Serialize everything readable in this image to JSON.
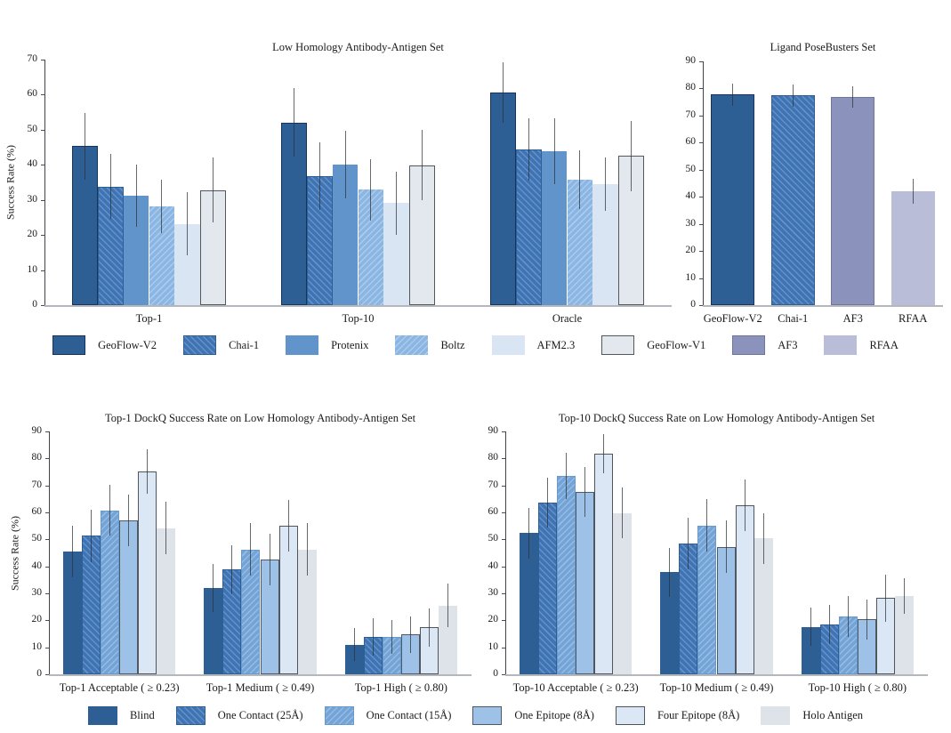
{
  "figure": {
    "background": "#ffffff",
    "error_bar_color": "rgba(45,48,52,0.72)"
  },
  "styles": {
    "geoflow_v2": {
      "fill": "#2d5e94",
      "border": "#17355a",
      "border_width": 1.5,
      "hatch": "none"
    },
    "chai_1": {
      "fill": "#3e74b3",
      "stripe": "#6591c8",
      "border": "#2d5e94",
      "border_width": 1,
      "hatch": "fwd"
    },
    "protenix": {
      "fill": "#6094cb",
      "border": "#6094cb",
      "border_width": 0,
      "hatch": "none"
    },
    "boltz": {
      "fill": "#8cb6e2",
      "stripe": "#aacbee",
      "border": "#84aedd",
      "border_width": 0,
      "hatch": "back"
    },
    "afm23": {
      "fill": "#d9e5f3",
      "border": "#d9e5f3",
      "border_width": 0,
      "hatch": "none"
    },
    "geoflow_v1": {
      "fill": "#e3e8ee",
      "border": "#54585d",
      "border_width": 1.5,
      "hatch": "none"
    },
    "af3": {
      "fill": "#8b92bb",
      "border": "#70769a",
      "border_width": 1,
      "hatch": "none"
    },
    "rfaa": {
      "fill": "#b9bdd7",
      "border": "#b9bdd7",
      "border_width": 0,
      "hatch": "none"
    },
    "blind": {
      "fill": "#2d5e94",
      "border": "#2d5e94",
      "border_width": 0,
      "hatch": "none"
    },
    "one_contact_25": {
      "fill": "#3e74b3",
      "stripe": "#6591c8",
      "border": "#2d5e94",
      "border_width": 1,
      "hatch": "fwd"
    },
    "one_contact_15": {
      "fill": "#74a3d6",
      "stripe": "#94bce5",
      "border": "#699ace",
      "border_width": 1,
      "hatch": "back"
    },
    "one_epitope_8": {
      "fill": "#9dc1e7",
      "border": "#4f5a68",
      "border_width": 1.2,
      "hatch": "none"
    },
    "four_epitope_8": {
      "fill": "#dbe7f5",
      "border": "#50555b",
      "border_width": 1.2,
      "hatch": "none"
    },
    "holo_antigen": {
      "fill": "#dee3ea",
      "border": "#dee3ea",
      "border_width": 0,
      "hatch": "none"
    }
  },
  "legend_top": {
    "items": [
      {
        "label": "GeoFlow-V2",
        "style": "geoflow_v2"
      },
      {
        "label": "Chai-1",
        "style": "chai_1"
      },
      {
        "label": "Protenix",
        "style": "protenix"
      },
      {
        "label": "Boltz",
        "style": "boltz"
      },
      {
        "label": "AFM2.3",
        "style": "afm23"
      },
      {
        "label": "GeoFlow-V1",
        "style": "geoflow_v1"
      },
      {
        "label": "AF3",
        "style": "af3"
      },
      {
        "label": "RFAA",
        "style": "rfaa"
      }
    ]
  },
  "legend_bottom": {
    "items": [
      {
        "label": "Blind",
        "style": "blind"
      },
      {
        "label": "One Contact (25Å)",
        "style": "one_contact_25"
      },
      {
        "label": "One Contact (15Å)",
        "style": "one_contact_15"
      },
      {
        "label": "One Epitope (8Å)",
        "style": "one_epitope_8"
      },
      {
        "label": "Four Epitope (8Å)",
        "style": "four_epitope_8"
      },
      {
        "label": "Holo Antigen",
        "style": "holo_antigen"
      }
    ]
  },
  "chart_data": [
    {
      "type": "bar",
      "title": "Low Homology Antibody-Antigen Set",
      "ylabel": "Success Rate (%)",
      "ylim": [
        0,
        70
      ],
      "ytick_step": 10,
      "grid": false,
      "legend_position": "shared-bottom",
      "categories": [
        "Top-1",
        "Top-10",
        "Oracle"
      ],
      "series": [
        {
          "name": "GeoFlow-V2",
          "style": "geoflow_v2",
          "values": [
            45.3,
            52.1,
            60.6
          ],
          "errors": [
            9.5,
            9.7,
            8.6
          ]
        },
        {
          "name": "Chai-1",
          "style": "chai_1",
          "values": [
            33.8,
            36.7,
            44.3
          ],
          "errors": [
            9.2,
            9.6,
            8.9
          ]
        },
        {
          "name": "Protenix",
          "style": "protenix",
          "values": [
            31.2,
            40.0,
            43.9
          ],
          "errors": [
            8.8,
            9.6,
            9.4
          ]
        },
        {
          "name": "Boltz",
          "style": "boltz",
          "values": [
            28.1,
            32.9,
            35.8
          ],
          "errors": [
            7.6,
            8.7,
            8.4
          ]
        },
        {
          "name": "AFM2.3",
          "style": "afm23",
          "values": [
            23.2,
            29.1,
            34.5
          ],
          "errors": [
            8.9,
            9.0,
            7.6
          ]
        },
        {
          "name": "GeoFlow-V1",
          "style": "geoflow_v1",
          "values": [
            32.8,
            39.9,
            42.5
          ],
          "errors": [
            9.2,
            10.0,
            10.0
          ]
        }
      ]
    },
    {
      "type": "bar",
      "title": "Ligand PoseBusters Set",
      "ylabel": "",
      "ylim": [
        0,
        90
      ],
      "ytick_step": 10,
      "grid": false,
      "legend_position": "shared-bottom",
      "bars": [
        {
          "label": "GeoFlow-V2",
          "style": "geoflow_v2",
          "value": 77.7,
          "error": 4.0
        },
        {
          "label": "Chai-1",
          "style": "chai_1",
          "value": 77.4,
          "error": 4.0
        },
        {
          "label": "AF3",
          "style": "af3",
          "value": 76.8,
          "error": 4.0
        },
        {
          "label": "RFAA",
          "style": "rfaa",
          "value": 42.2,
          "error": 4.6
        }
      ]
    },
    {
      "type": "bar",
      "title": "Top-1 DockQ Success Rate on Low Homology Antibody-Antigen Set",
      "ylabel": "Success Rate (%)",
      "ylim": [
        0,
        90
      ],
      "ytick_step": 10,
      "grid": false,
      "legend_position": "shared-bottom",
      "categories": [
        "Top-1 Acceptable ( ≥ 0.23)",
        "Top-1 Medium ( ≥ 0.49)",
        "Top-1 High ( ≥ 0.80)"
      ],
      "series": [
        {
          "name": "Blind",
          "style": "blind",
          "values": [
            45.4,
            32.0,
            11.0
          ],
          "errors": [
            9.5,
            9.0,
            6.2
          ]
        },
        {
          "name": "One Contact (25Å)",
          "style": "one_contact_25",
          "values": [
            51.3,
            38.8,
            13.9
          ],
          "errors": [
            9.8,
            9.0,
            7.0
          ]
        },
        {
          "name": "One Contact (15Å)",
          "style": "one_contact_15",
          "values": [
            60.8,
            46.3,
            13.9
          ],
          "errors": [
            9.5,
            9.7,
            6.3
          ]
        },
        {
          "name": "One Epitope (8Å)",
          "style": "one_epitope_8",
          "values": [
            57.0,
            42.6,
            14.7
          ],
          "errors": [
            9.6,
            9.5,
            6.7
          ]
        },
        {
          "name": "Four Epitope (8Å)",
          "style": "four_epitope_8",
          "values": [
            75.2,
            55.0,
            17.4
          ],
          "errors": [
            8.3,
            9.5,
            7.1
          ]
        },
        {
          "name": "Holo Antigen",
          "style": "holo_antigen",
          "values": [
            54.2,
            46.3,
            25.5
          ],
          "errors": [
            9.6,
            9.7,
            8.1
          ]
        }
      ]
    },
    {
      "type": "bar",
      "title": "Top-10 DockQ Success Rate on Low Homology Antibody-Antigen Set",
      "ylabel": "",
      "ylim": [
        0,
        90
      ],
      "ytick_step": 10,
      "grid": false,
      "legend_position": "shared-bottom",
      "categories": [
        "Top-10 Acceptable ( ≥ 0.23)",
        "Top-10 Medium ( ≥ 0.49)",
        "Top-10 High ( ≥ 0.80)"
      ],
      "series": [
        {
          "name": "Blind",
          "style": "blind",
          "values": [
            52.3,
            37.8,
            17.5
          ],
          "errors": [
            9.5,
            9.1,
            7.1
          ]
        },
        {
          "name": "One Contact (25Å)",
          "style": "one_contact_25",
          "values": [
            63.7,
            48.4,
            18.5
          ],
          "errors": [
            9.2,
            9.6,
            7.2
          ]
        },
        {
          "name": "One Contact (15Å)",
          "style": "one_contact_15",
          "values": [
            73.5,
            55.2,
            21.3
          ],
          "errors": [
            8.7,
            9.7,
            7.6
          ]
        },
        {
          "name": "One Epitope (8Å)",
          "style": "one_epitope_8",
          "values": [
            67.5,
            47.3,
            20.3
          ],
          "errors": [
            9.2,
            9.7,
            7.5
          ]
        },
        {
          "name": "Four Epitope (8Å)",
          "style": "four_epitope_8",
          "values": [
            81.8,
            62.6,
            28.2
          ],
          "errors": [
            7.2,
            9.6,
            8.6
          ]
        },
        {
          "name": "Holo Antigen",
          "style": "holo_antigen",
          "values": [
            59.7,
            50.4,
            29.0
          ],
          "errors": [
            9.4,
            9.4,
            6.6
          ]
        }
      ]
    }
  ]
}
